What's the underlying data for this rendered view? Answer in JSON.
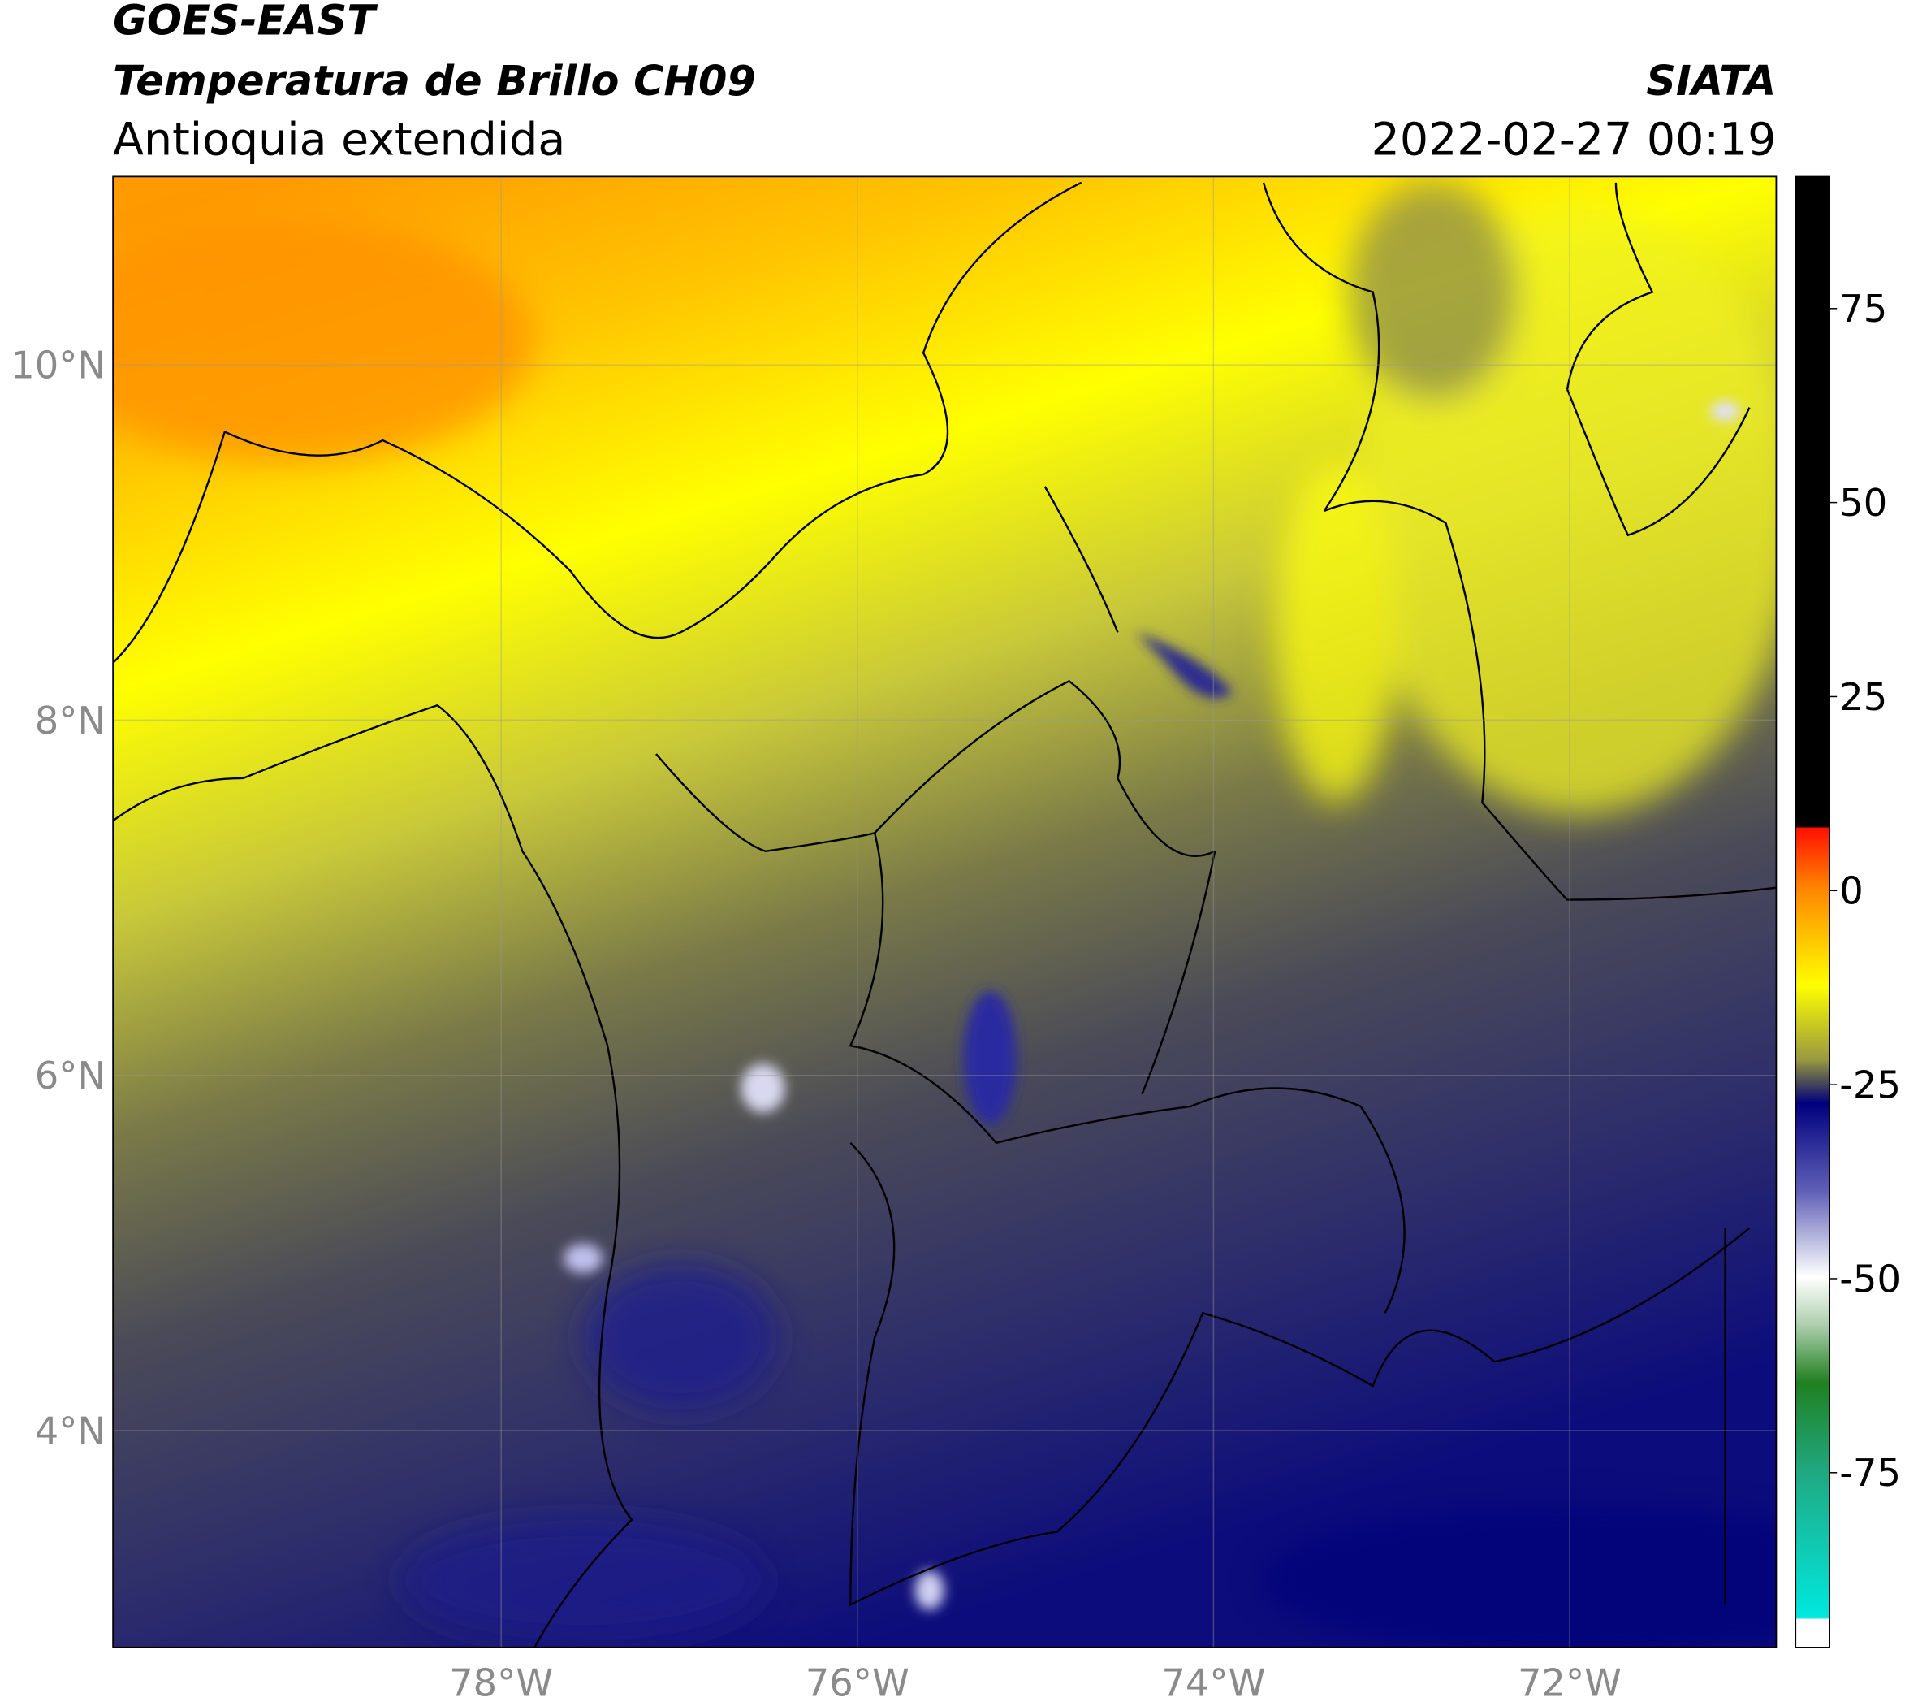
{
  "header": {
    "title": "GOES-EAST",
    "subtitle": "Temperatura de Brillo CH09",
    "region": "Antioquia extendida",
    "source": "SIATA",
    "datetime": "2022-02-27 00:19"
  },
  "map": {
    "xlim": [
      -80.18,
      -70.84
    ],
    "ylim": [
      2.78,
      11.06
    ],
    "xticks": [
      {
        "value": -78,
        "label": "78°W"
      },
      {
        "value": -76,
        "label": "76°W"
      },
      {
        "value": -74,
        "label": "74°W"
      },
      {
        "value": -72,
        "label": "72°W"
      }
    ],
    "yticks": [
      {
        "value": 10,
        "label": "10°N"
      },
      {
        "value": 8,
        "label": "8°N"
      },
      {
        "value": 6,
        "label": "6°N"
      },
      {
        "value": 4,
        "label": "4°N"
      }
    ],
    "grid": true
  },
  "colorbar": {
    "clim": [
      -97.5,
      92
    ],
    "ticks": [
      75,
      50,
      25,
      0,
      -25,
      -50,
      -75
    ]
  }
}
